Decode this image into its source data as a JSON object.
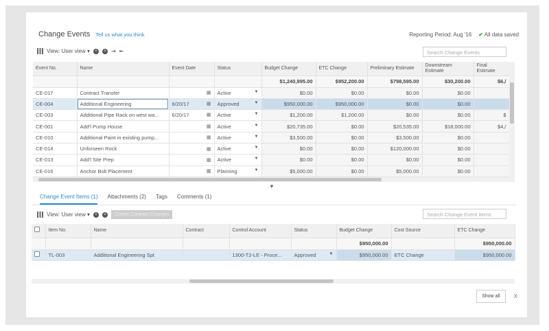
{
  "header": {
    "title": "Change Events",
    "feedback_link": "Tell us what you think",
    "reporting_period": "Reporting Period: Aug '16",
    "save_status": "All data saved"
  },
  "top_toolbar": {
    "view_label": "View: User view",
    "search_placeholder": "Search Change Events"
  },
  "events_table": {
    "columns": [
      "Event No.",
      "Name",
      "Event Date",
      "Status",
      "Budget Change",
      "ETC Change",
      "Preliminary Estimate",
      "Downstream Estimate",
      "Final Estimate"
    ],
    "totals": [
      "",
      "",
      "",
      "",
      "$1,240,995.00",
      "$952,200.00",
      "$798,595.00",
      "$30,200.00",
      "$6,/"
    ],
    "rows": [
      [
        "CE-017",
        "Contract Transfer",
        "",
        "Active",
        "$0.00",
        "$0.00",
        "$0.00",
        "$0.00",
        ""
      ],
      [
        "CE-004",
        "Additional Engineering",
        "6/20/17",
        "Approved",
        "$950,000.00",
        "$950,000.00",
        "$0.00",
        "$0.00",
        ""
      ],
      [
        "CE-003",
        "Additional Pipe Rack on west wa...",
        "6/20/17",
        "Active",
        "$1,200.00",
        "$1,200.00",
        "$0.00",
        "$0.00",
        "$"
      ],
      [
        "CE-001",
        "Add'l Pump House",
        "",
        "Active",
        "$20,735.00",
        "$0.00",
        "$20,535.00",
        "$18,000.00",
        "$4,/"
      ],
      [
        "CE-010",
        "Additional Paint in existing pump...",
        "",
        "Active",
        "$3,500.00",
        "$0.00",
        "$3,500.00",
        "$0.00",
        ""
      ],
      [
        "CE-014",
        "Unforseen Rock",
        "",
        "Active",
        "$0.00",
        "$0.00",
        "$120,000.00",
        "$0.00",
        ""
      ],
      [
        "CE-013",
        "Add'l Site Prep",
        "",
        "Active",
        "$0.00",
        "$0.00",
        "$0.00",
        "$0.00",
        ""
      ],
      [
        "CE-016",
        "Anchor Bolt Placement",
        "",
        "Planning",
        "$5,000.00",
        "$0.00",
        "$5,000.00",
        "$0.00",
        ""
      ]
    ]
  },
  "tabs": [
    "Change Event Items (1)",
    "Attachments (2)",
    "Tags",
    "Comments (1)"
  ],
  "bottom_toolbar": {
    "view_label": "View: User view",
    "create_button": "Create Contract Changes",
    "search_placeholder": "Search Change Event Items"
  },
  "items_table": {
    "columns": [
      "",
      "Item No.",
      "Name",
      "Contract",
      "Control Account",
      "Status",
      "Budget Change",
      "Cost Source",
      "ETC Change"
    ],
    "totals": [
      "",
      "",
      "",
      "",
      "",
      "",
      "$950,000.00",
      "",
      "$950,000.00"
    ],
    "rows": [
      [
        "",
        "TL-003",
        "Additional Engineering Spt",
        "",
        "1300-T2-LE - Proce...",
        "Approved",
        "$950,000.00",
        "ETC Change",
        "$950,000.00"
      ]
    ]
  },
  "footer": {
    "show_all": "Show all",
    "close": "X"
  },
  "colors": {
    "accent": "#2a8ad4",
    "selected_row": "#dde9f5",
    "saved_check": "#3aa03a"
  }
}
